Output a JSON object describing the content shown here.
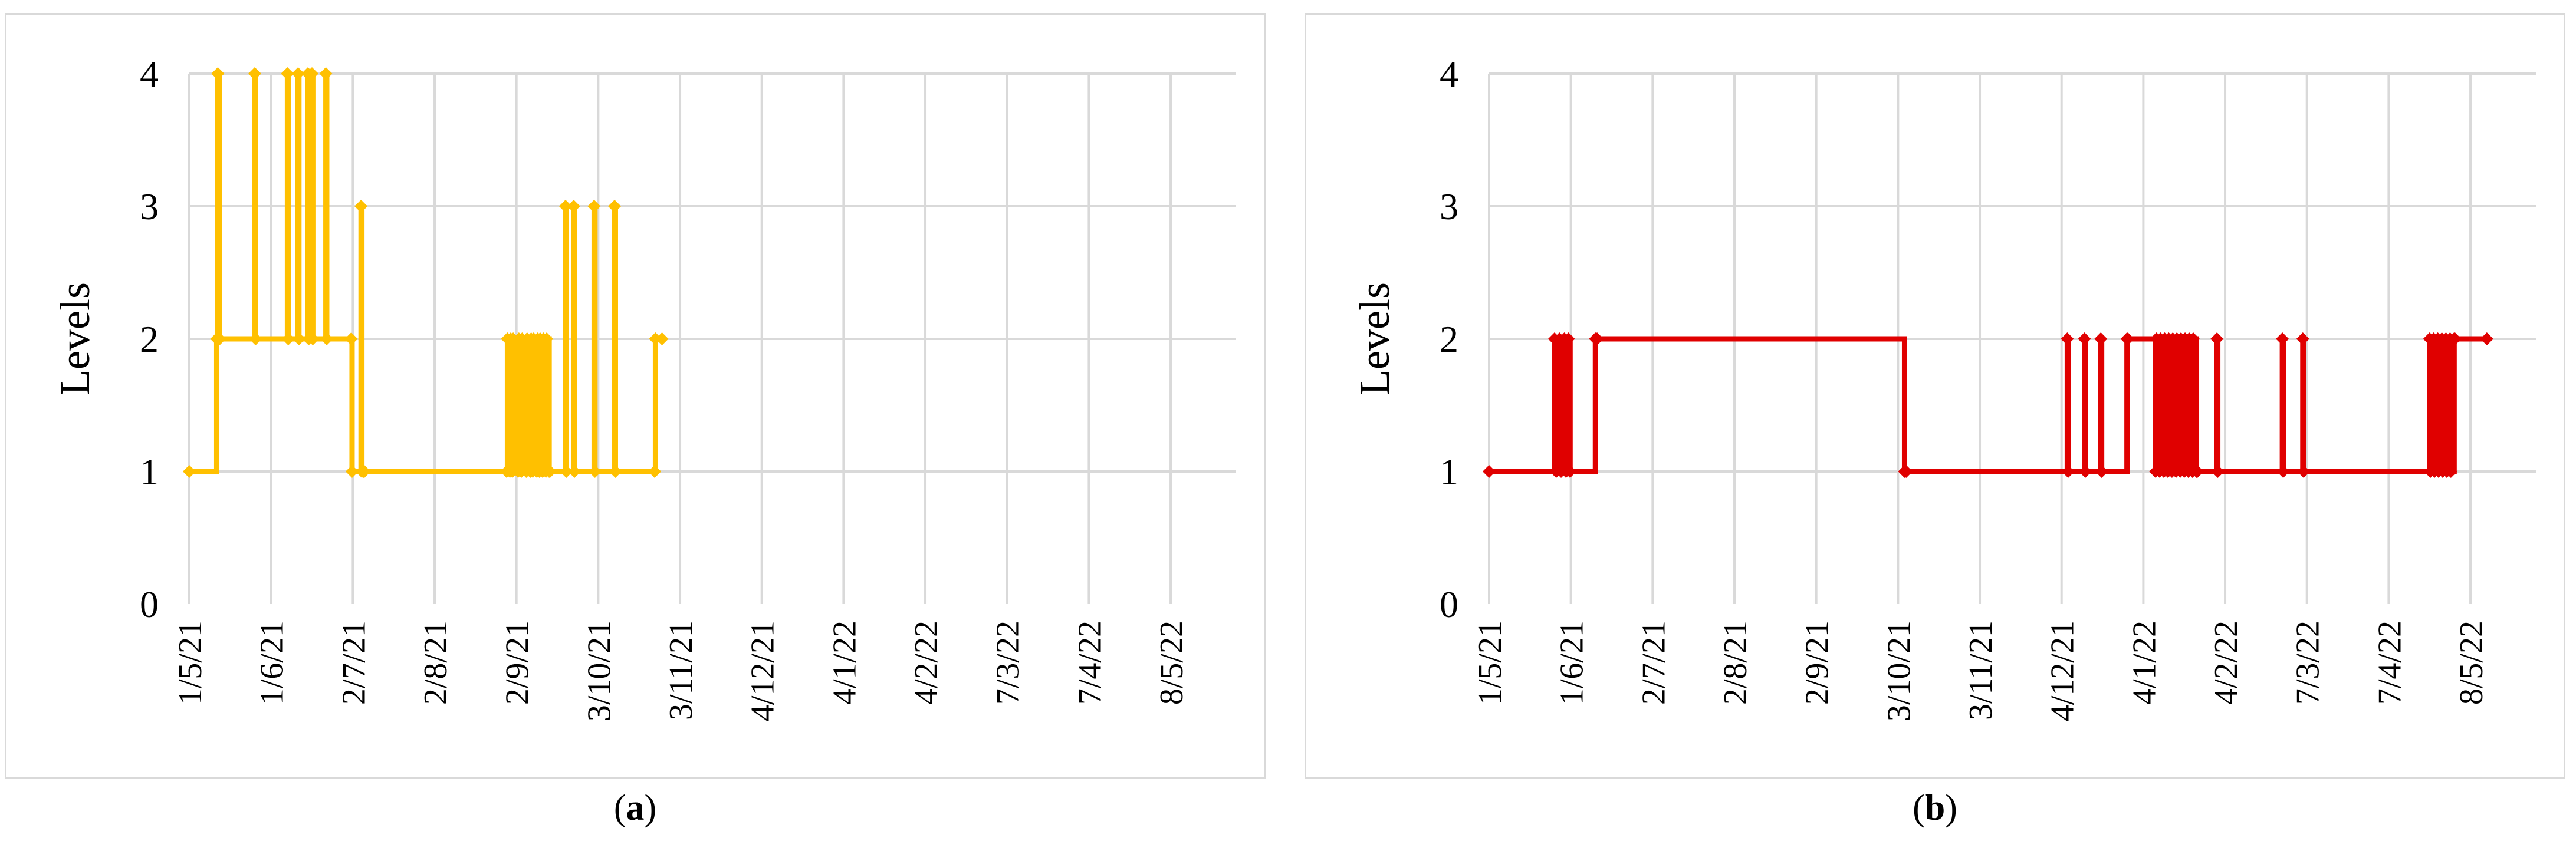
{
  "colors": {
    "panel_a": "#FFC000",
    "panel_b": "#E00000",
    "grid": "#d9d9d9",
    "border": "#d9d9d9"
  },
  "chart_data": [
    {
      "type": "line",
      "step": true,
      "panel_label": "a",
      "caption": "(a)",
      "ylabel": "Levels",
      "ylim": [
        0,
        4
      ],
      "y_ticks": [
        "0",
        "1",
        "2",
        "3",
        "4"
      ],
      "x_ticks": [
        "1/5/21",
        "1/6/21",
        "2/7/21",
        "2/8/21",
        "2/9/21",
        "3/10/21",
        "3/11/21",
        "4/12/21",
        "4/1/22",
        "4/2/22",
        "7/3/22",
        "7/4/22",
        "8/5/22"
      ],
      "grid": true,
      "color": "#FFC000",
      "series": [
        {
          "x": [
            0,
            0.335,
            0.349,
            0.37,
            0.8,
            0.81,
            1.2,
            1.21,
            1.33,
            1.34,
            1.45,
            1.46,
            1.5,
            1.51,
            1.67,
            1.68,
            1.98,
            1.99,
            2.1,
            2.11,
            2.13,
            2.14,
            3.88,
            3.89,
            3.92,
            3.93,
            3.95,
            3.96,
            4.02,
            4.03,
            4.06,
            4.07,
            4.12,
            4.13,
            4.17,
            4.18,
            4.2,
            4.21,
            4.25,
            4.26,
            4.28,
            4.29,
            4.32,
            4.33,
            4.36,
            4.37,
            4.4,
            4.41,
            4.6,
            4.61,
            4.7,
            4.71,
            4.95,
            4.96,
            5.2,
            5.21,
            5.69,
            5.7,
            5.78
          ],
          "y": [
            1,
            2,
            4,
            2,
            4,
            2,
            4,
            2,
            4,
            2,
            4,
            2,
            4,
            2,
            4,
            2,
            2,
            1,
            3,
            1,
            1,
            1,
            1,
            2,
            1,
            2,
            1,
            2,
            1,
            2,
            1,
            2,
            1,
            2,
            1,
            2,
            1,
            2,
            1,
            2,
            1,
            2,
            1,
            2,
            1,
            2,
            1,
            1,
            3,
            1,
            3,
            1,
            3,
            1,
            3,
            1,
            1,
            2,
            2
          ]
        }
      ]
    },
    {
      "type": "line",
      "step": true,
      "panel_label": "b",
      "caption": "(b)",
      "ylabel": "Levels",
      "ylim": [
        0,
        4
      ],
      "y_ticks": [
        "0",
        "1",
        "2",
        "3",
        "4"
      ],
      "x_ticks": [
        "1/5/21",
        "1/6/21",
        "2/7/21",
        "2/8/21",
        "2/9/21",
        "3/10/21",
        "3/11/21",
        "4/12/21",
        "4/1/22",
        "4/2/22",
        "7/3/22",
        "7/4/22",
        "8/5/22"
      ],
      "grid": true,
      "color": "#E00000",
      "series": [
        {
          "x": [
            0,
            0.8,
            0.82,
            0.86,
            0.88,
            0.92,
            0.94,
            0.97,
            0.99,
            1.3,
            1.32,
            5.08,
            5.1,
            7.07,
            7.08,
            7.28,
            7.29,
            7.48,
            7.49,
            7.8,
            7.81,
            8.15,
            8.16,
            8.2,
            8.21,
            8.25,
            8.26,
            8.3,
            8.31,
            8.35,
            8.36,
            8.4,
            8.41,
            8.45,
            8.46,
            8.5,
            8.51,
            8.55,
            8.56,
            8.6,
            8.61,
            8.65,
            8.66,
            8.9,
            8.91,
            9.7,
            9.71,
            9.95,
            9.96,
            11.5,
            11.51,
            11.55,
            11.56,
            11.6,
            11.61,
            11.65,
            11.66,
            11.7,
            11.71,
            11.75,
            11.76,
            11.8,
            11.81,
            12.2
          ],
          "y": [
            1,
            2,
            1,
            2,
            1,
            2,
            1,
            2,
            1,
            2,
            2,
            1,
            1,
            2,
            1,
            2,
            1,
            2,
            1,
            2,
            2,
            1,
            2,
            1,
            2,
            1,
            2,
            1,
            2,
            1,
            2,
            1,
            2,
            1,
            2,
            1,
            2,
            1,
            2,
            1,
            2,
            1,
            1,
            2,
            1,
            2,
            1,
            2,
            1,
            2,
            1,
            2,
            1,
            2,
            1,
            2,
            1,
            2,
            1,
            2,
            1,
            2,
            2,
            2
          ]
        }
      ]
    }
  ]
}
